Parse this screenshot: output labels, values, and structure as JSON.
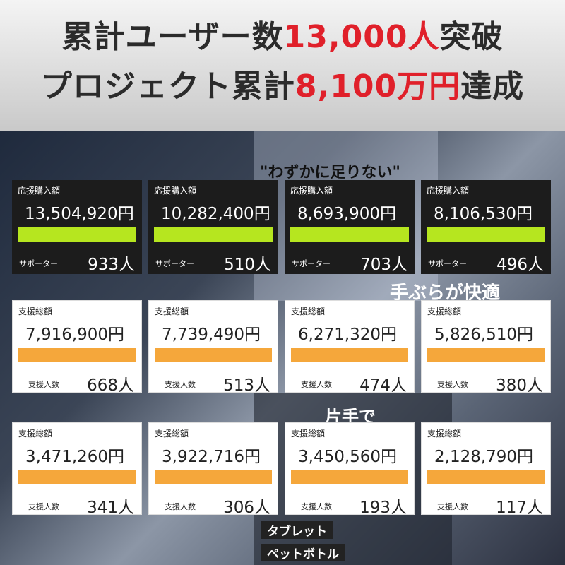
{
  "headline": {
    "line1": {
      "before": "累計ユーザー数",
      "highlight": "13,000人",
      "after": "突破"
    },
    "line2": {
      "before": "プロジェクト累計",
      "highlight": "8,100万円",
      "after": "達成"
    }
  },
  "background_texts": [
    "\"わずかに足りない\"",
    "手ぶらが快適",
    "片手で",
    "タブレット",
    "ペットボトル"
  ],
  "card_rows": [
    {
      "amount_label": "応援購入額",
      "count_label": "サポーター",
      "cards": [
        {
          "amount": "13,504,920円",
          "count": "933人"
        },
        {
          "amount": "10,282,400円",
          "count": "510人"
        },
        {
          "amount": "8,693,900円",
          "count": "703人"
        },
        {
          "amount": "8,106,530円",
          "count": "496人"
        }
      ]
    },
    {
      "amount_label": "支援総額",
      "count_label": "支援人数",
      "cards": [
        {
          "amount": "7,916,900円",
          "count": "668人"
        },
        {
          "amount": "7,739,490円",
          "count": "513人"
        },
        {
          "amount": "6,271,320円",
          "count": "474人"
        },
        {
          "amount": "5,826,510円",
          "count": "380人"
        }
      ]
    },
    {
      "amount_label": "支援総額",
      "count_label": "支援人数",
      "cards": [
        {
          "amount": "3,471,260円",
          "count": "341人"
        },
        {
          "amount": "3,922,716円",
          "count": "306人"
        },
        {
          "amount": "3,450,560円",
          "count": "193人"
        },
        {
          "amount": "2,128,790円",
          "count": "117人"
        }
      ]
    }
  ]
}
